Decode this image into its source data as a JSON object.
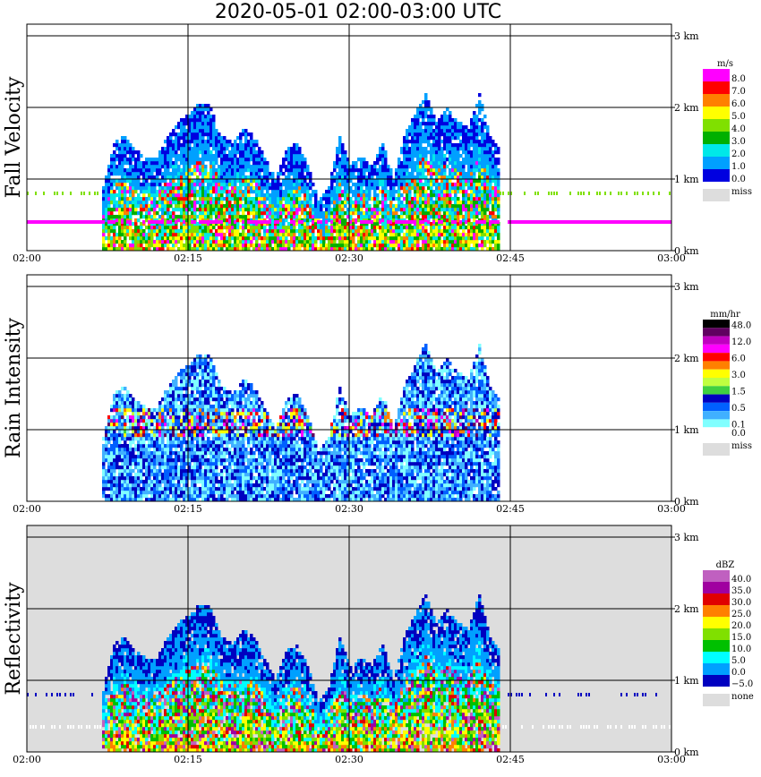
{
  "title": "2020-05-01   02:00-03:00 UTC",
  "chart_data": [
    {
      "type": "heatmap",
      "ylabel": "Fall Velocity",
      "unit": "m/s",
      "background": "#ffffff",
      "xlim": [
        "02:00",
        "03:00"
      ],
      "x_ticks": [
        "02:00",
        "02:15",
        "02:30",
        "02:45",
        "03:00"
      ],
      "y_ticks": [
        "0 km",
        "1 km",
        "2 km",
        "3 km"
      ],
      "ylim_km": [
        0,
        3.1
      ],
      "grid": true,
      "legend": "right",
      "colorbar": [
        {
          "label": "8.0",
          "color": "#ff00ff"
        },
        {
          "label": "7.0",
          "color": "#ff0000"
        },
        {
          "label": "6.0",
          "color": "#ff8000"
        },
        {
          "label": "5.0",
          "color": "#ffff00"
        },
        {
          "label": "4.0",
          "color": "#80e000"
        },
        {
          "label": "3.0",
          "color": "#00b000"
        },
        {
          "label": "2.0",
          "color": "#00e8e8"
        },
        {
          "label": "1.0",
          "color": "#00a0ff"
        },
        {
          "label": "0.0",
          "color": "#0000e0"
        }
      ],
      "missing": {
        "label": "miss",
        "color": "#dddddd"
      },
      "echo_periods": [
        [
          "02:07",
          "02:44"
        ]
      ],
      "max_echo_top_km": 2.3,
      "features": [
        {
          "name": "magenta line",
          "height_km": 0.4,
          "color": "#ff00ff"
        },
        {
          "name": "green dots",
          "height_km": 0.8,
          "color": "#80e000"
        }
      ]
    },
    {
      "type": "heatmap",
      "ylabel": "Rain Intensity",
      "unit": "mm/hr",
      "background": "#ffffff",
      "xlim": [
        "02:00",
        "03:00"
      ],
      "x_ticks": [
        "02:00",
        "02:15",
        "02:30",
        "02:45",
        "03:00"
      ],
      "y_ticks": [
        "0 km",
        "1 km",
        "2 km",
        "3 km"
      ],
      "ylim_km": [
        0,
        3.1
      ],
      "grid": true,
      "legend": "right",
      "colorbar": [
        {
          "label": "48.0",
          "color": "#000000"
        },
        {
          "label": "",
          "color": "#600060"
        },
        {
          "label": "12.0",
          "color": "#c000c0"
        },
        {
          "label": "",
          "color": "#ff00ff"
        },
        {
          "label": "6.0",
          "color": "#ff0000"
        },
        {
          "label": "",
          "color": "#ff8000"
        },
        {
          "label": "3.0",
          "color": "#ffff00"
        },
        {
          "label": "",
          "color": "#c0ff40"
        },
        {
          "label": "1.5",
          "color": "#40d040"
        },
        {
          "label": "",
          "color": "#0000c0"
        },
        {
          "label": "0.5",
          "color": "#0060ff"
        },
        {
          "label": "",
          "color": "#40b0ff"
        },
        {
          "label": "0.1",
          "color": "#80ffff"
        },
        {
          "label": "0.0",
          "color": "#ffffff"
        }
      ],
      "missing": {
        "label": "miss",
        "color": "#dddddd"
      },
      "echo_periods": [
        [
          "02:07",
          "02:44"
        ]
      ],
      "max_echo_top_km": 2.3
    },
    {
      "type": "heatmap",
      "ylabel": "Reflectivity",
      "unit": "dBZ",
      "background": "#dddddd",
      "xlim": [
        "02:00",
        "03:00"
      ],
      "x_ticks": [
        "02:00",
        "02:15",
        "02:30",
        "02:45",
        "03:00"
      ],
      "y_ticks": [
        "0 km",
        "1 km",
        "2 km",
        "3 km"
      ],
      "ylim_km": [
        0,
        3.1
      ],
      "grid": true,
      "legend": "right",
      "colorbar": [
        {
          "label": "40.0",
          "color": "#c060c0"
        },
        {
          "label": "35.0",
          "color": "#a000a0"
        },
        {
          "label": "30.0",
          "color": "#e00000"
        },
        {
          "label": "25.0",
          "color": "#ff8000"
        },
        {
          "label": "20.0",
          "color": "#ffff00"
        },
        {
          "label": "15.0",
          "color": "#80e000"
        },
        {
          "label": "10.0",
          "color": "#00c000"
        },
        {
          "label": "5.0",
          "color": "#00ffff"
        },
        {
          "label": "0.0",
          "color": "#00a0ff"
        },
        {
          "label": "−5.0",
          "color": "#0000c0"
        }
      ],
      "missing": {
        "label": "none",
        "color": "#dddddd"
      },
      "echo_periods": [
        [
          "02:07",
          "02:44"
        ]
      ],
      "max_echo_top_km": 2.3,
      "features": [
        {
          "name": "blue dots",
          "height_km": 0.8,
          "color": "#0000c0"
        },
        {
          "name": "white band",
          "height_km": 0.35,
          "color": "#ffffff"
        }
      ]
    }
  ]
}
